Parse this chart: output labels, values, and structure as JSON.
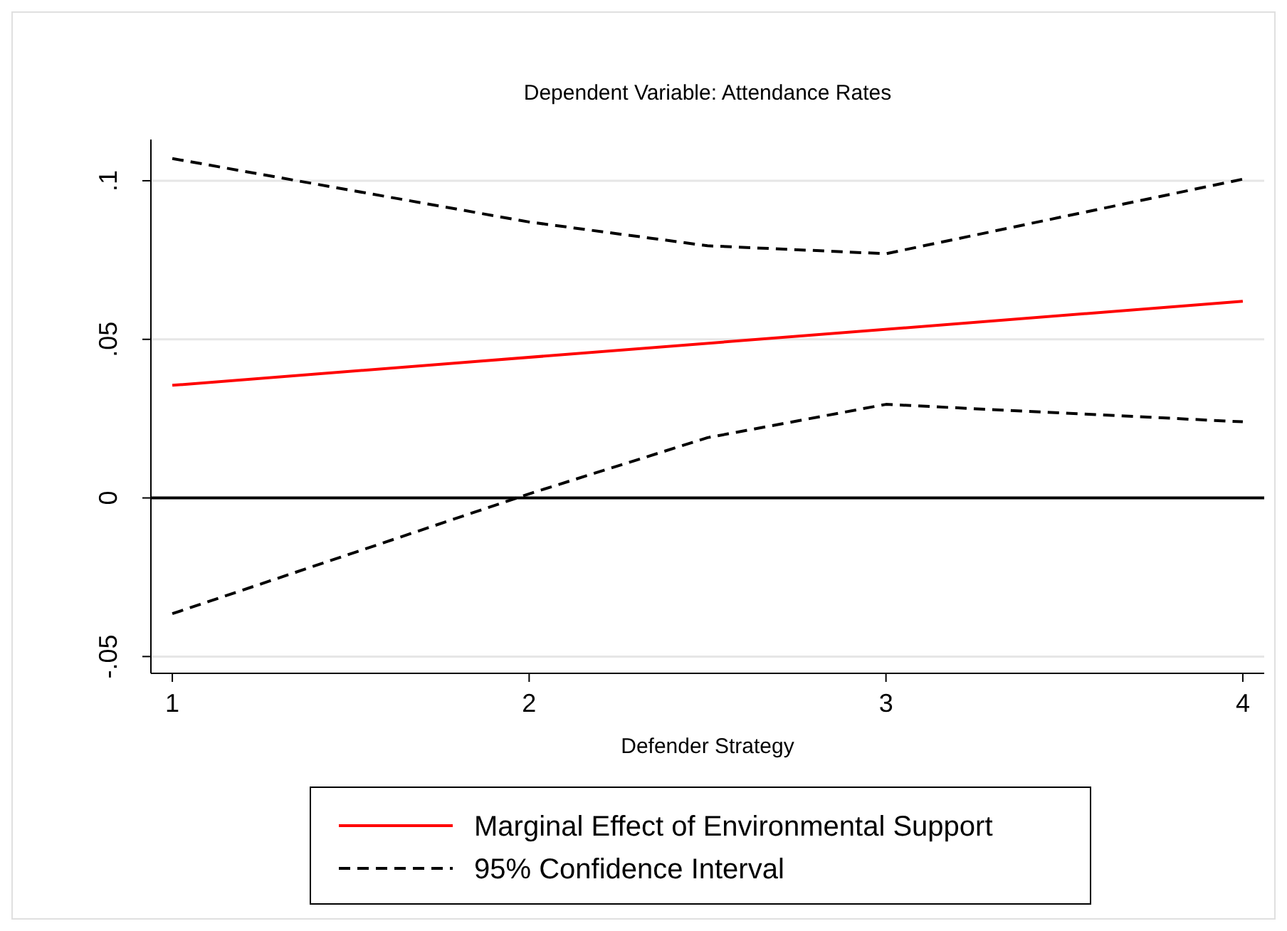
{
  "chart_data": {
    "type": "line",
    "title": "Dependent Variable: Attendance Rates",
    "xlabel": "Defender Strategy",
    "series": [
      {
        "name": "Marginal Effect of Environmental Support",
        "color": "#ff0000",
        "x": [
          1,
          4
        ],
        "values": [
          0.0355,
          0.062
        ],
        "line_style": "solid"
      },
      {
        "name": "95% Confidence Interval",
        "color": "#000000",
        "x": [
          1,
          2,
          2.5,
          3,
          4
        ],
        "values": [
          0.107,
          0.087,
          0.0795,
          0.077,
          0.1005
        ],
        "line_style": "dashed"
      },
      {
        "color": "#000000",
        "x": [
          1,
          2,
          2.5,
          3,
          4
        ],
        "values": [
          -0.0365,
          0.0013,
          0.019,
          0.0295,
          0.024
        ],
        "line_style": "dashed"
      }
    ],
    "xlim": [
      0.94,
      4.06
    ],
    "xticks": [
      1,
      2,
      3,
      4
    ],
    "ylim": [
      -0.0553,
      0.113
    ],
    "yticks": [
      {
        "value": -0.05,
        "label": "-.05"
      },
      {
        "value": 0,
        "label": "0"
      },
      {
        "value": 0.05,
        "label": ".05"
      },
      {
        "value": 0.1,
        "label": ".1"
      }
    ],
    "grid": "y",
    "ref_lines": [
      {
        "axis": "y",
        "value": 0,
        "color": "#000000"
      }
    ],
    "legend": "bottom",
    "marker": "none"
  }
}
